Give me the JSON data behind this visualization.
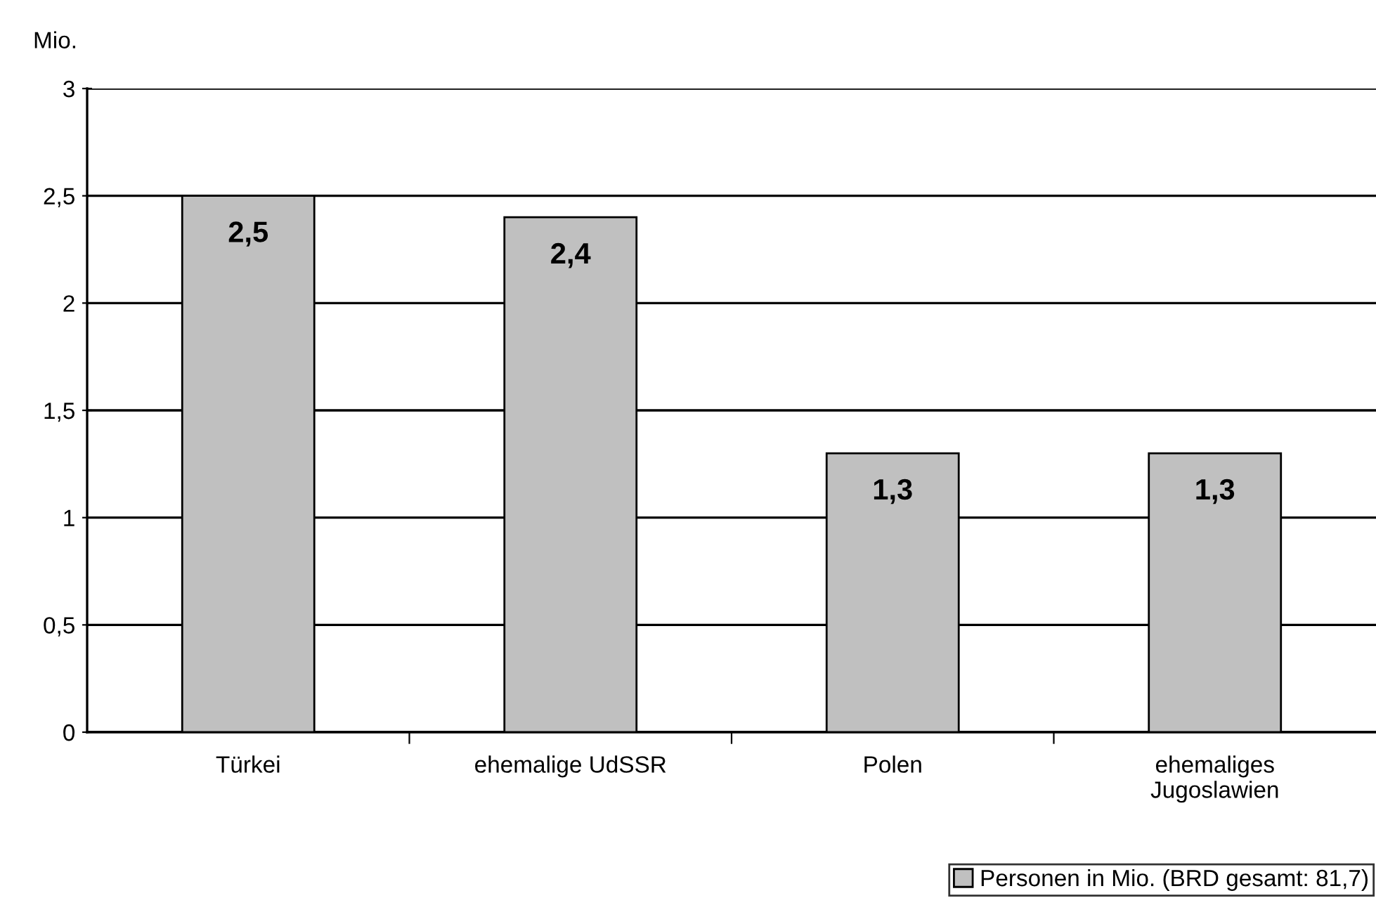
{
  "chart_data": {
    "type": "bar",
    "ylabel": "Mio.",
    "categories": [
      "Türkei",
      "ehemalige UdSSR",
      "Polen",
      "ehemaliges\nJugoslawien"
    ],
    "series": [
      {
        "name": "Personen in Mio. (BRD gesamt: 81,7)",
        "color": "#c0c0c0",
        "values": [
          2.5,
          2.4,
          1.3,
          1.3
        ],
        "value_labels": [
          "2,5",
          "2,4",
          "1,3",
          "1,3"
        ]
      }
    ],
    "ylim": [
      0,
      3
    ],
    "yticks": [
      0,
      {
        "value": 0.5,
        "label": "0,5"
      },
      1,
      {
        "value": 1.5,
        "label": "1,5"
      },
      2,
      {
        "value": 2.5,
        "label": "2,5"
      },
      3
    ],
    "grid": "y",
    "legend": "bottom right"
  }
}
